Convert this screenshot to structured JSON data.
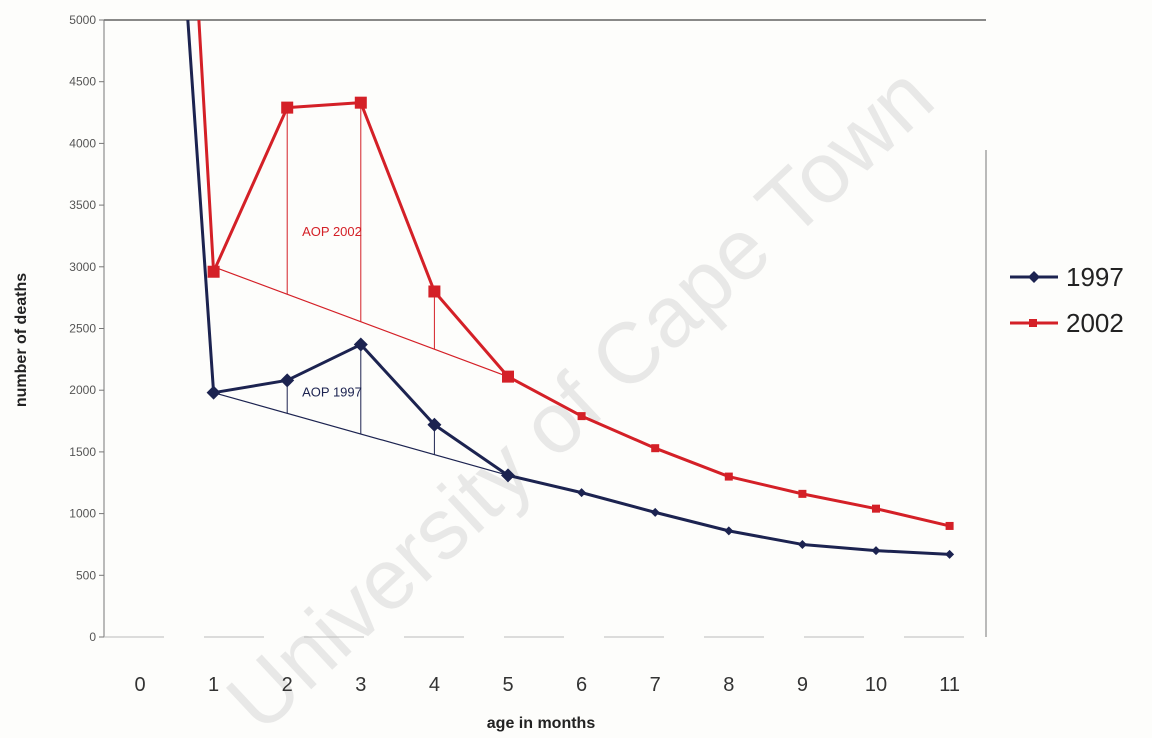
{
  "chart_data": {
    "type": "line",
    "title": "",
    "xlabel": "age in months",
    "ylabel": "number of deaths",
    "categories": [
      0,
      1,
      2,
      3,
      4,
      5,
      6,
      7,
      8,
      9,
      10,
      11
    ],
    "x_tick_labels": [
      "0",
      "1",
      "2",
      "3",
      "4",
      "5",
      "6",
      "7",
      "8",
      "9",
      "10",
      "11"
    ],
    "y_tick_labels": [
      "0",
      "500",
      "1000",
      "1500",
      "2000",
      "2500",
      "3000",
      "3500",
      "4000",
      "4500",
      "5000"
    ],
    "ylim": [
      0,
      5000
    ],
    "legend_position": "right",
    "grid": false,
    "series": [
      {
        "name": "1997",
        "color": "#1c2350",
        "marker": "diamond",
        "x": [
          0.65,
          1,
          2,
          3,
          4,
          5,
          6,
          7,
          8,
          9,
          10,
          11
        ],
        "values": [
          5000,
          1980,
          2080,
          2370,
          1720,
          1310,
          1170,
          1010,
          860,
          750,
          700,
          670
        ]
      },
      {
        "name": "2002",
        "color": "#d42027",
        "marker": "square",
        "x": [
          0.8,
          1,
          2,
          3,
          4,
          5,
          6,
          7,
          8,
          9,
          10,
          11
        ],
        "values": [
          5000,
          2960,
          4290,
          4330,
          2800,
          2110,
          1790,
          1530,
          1300,
          1160,
          1040,
          900
        ]
      }
    ],
    "annotations": [
      {
        "text": "AOP 2002",
        "color": "#d42027",
        "baseline_from": [
          1,
          3000
        ],
        "baseline_to": [
          5,
          2110
        ],
        "drops_at_x": [
          2,
          3,
          4
        ]
      },
      {
        "text": "AOP 1997",
        "color": "#1c2350",
        "baseline_from": [
          1,
          1980
        ],
        "baseline_to": [
          5,
          1310
        ],
        "drops_at_x": [
          2,
          3,
          4
        ]
      }
    ],
    "watermark": "University of Cape Town"
  }
}
